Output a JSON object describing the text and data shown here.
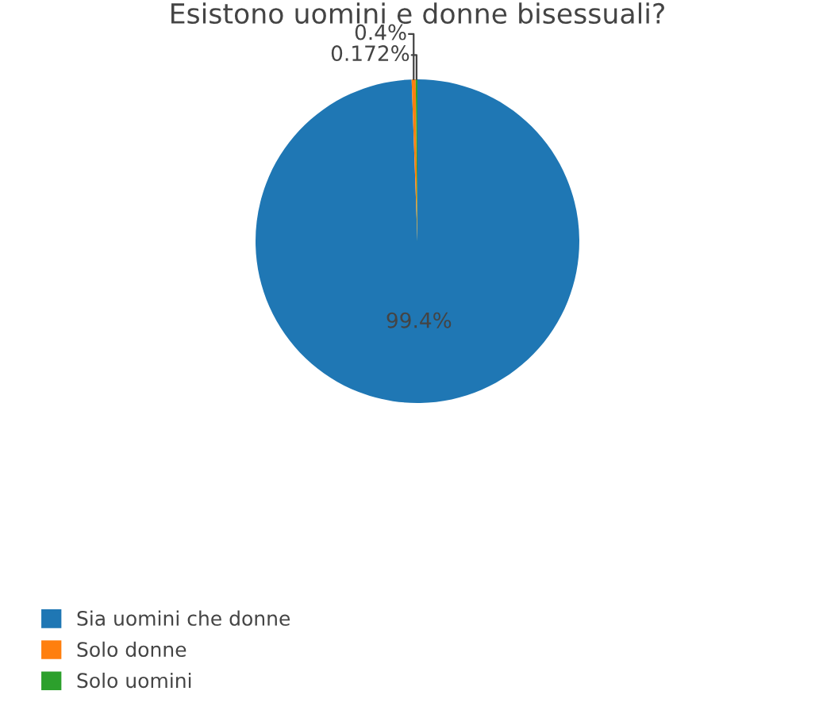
{
  "chart_data": {
    "type": "pie",
    "title": "Esistono uomini e donne bisessuali?",
    "categories": [
      "Sia uomini che donne",
      "Solo donne",
      "Solo uomini"
    ],
    "values": [
      99.4,
      0.4,
      0.172
    ],
    "value_labels": [
      "99.4%",
      "0.4%",
      "0.172%"
    ],
    "colors": [
      "#1f77b4",
      "#ff7f0e",
      "#2ca02c"
    ],
    "legend": "bottom left"
  }
}
